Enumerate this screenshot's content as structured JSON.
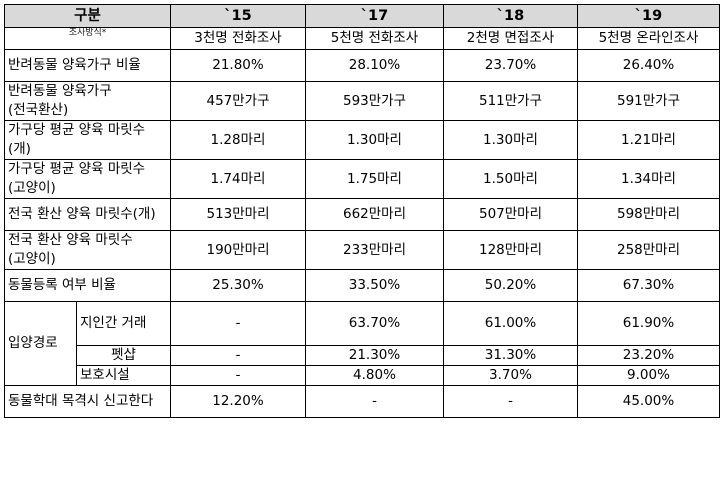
{
  "header": {
    "category": "구분",
    "years": [
      "`15",
      "`17",
      "`18",
      "`19"
    ]
  },
  "method": {
    "label": "조사방식*",
    "values": [
      "3천명 전화조사",
      "5천명 전화조사",
      "2천명 면접조사",
      "5천명 온라인조사"
    ]
  },
  "rows": [
    {
      "label": "반려동물 양육가구 비율",
      "values": [
        "21.80%",
        "28.10%",
        "23.70%",
        "26.40%"
      ]
    },
    {
      "label": "반려동물 양육가구(전국환산)",
      "values": [
        "457만가구",
        "593만가구",
        "511만가구",
        "591만가구"
      ]
    },
    {
      "label": "가구당 평균 양육 마릿수(개)",
      "values": [
        "1.28마리",
        "1.30마리",
        "1.30마리",
        "1.21마리"
      ]
    },
    {
      "label": "가구당 평균 양육 마릿수(고양이)",
      "values": [
        "1.74마리",
        "1.75마리",
        "1.50마리",
        "1.34마리"
      ]
    },
    {
      "label": "전국 환산 양육 마릿수(개)",
      "values": [
        "513만마리",
        "662만마리",
        "507만마리",
        "598만마리"
      ]
    },
    {
      "label": "전국 환산 양육 마릿수(고양이)",
      "values": [
        "190만마리",
        "233만마리",
        "128만마리",
        "258만마리"
      ]
    },
    {
      "label": "동물등록 여부 비율",
      "values": [
        "25.30%",
        "33.50%",
        "50.20%",
        "67.30%"
      ]
    }
  ],
  "adoption": {
    "label": "입양경로",
    "items": [
      {
        "label": "지인간 거래",
        "values": [
          "-",
          "63.70%",
          "61.00%",
          "61.90%"
        ]
      },
      {
        "label": "펫샵",
        "values": [
          "-",
          "21.30%",
          "31.30%",
          "23.20%"
        ]
      },
      {
        "label": "보호시설",
        "values": [
          "-",
          "4.80%",
          "3.70%",
          "9.00%"
        ]
      }
    ]
  },
  "last_row": {
    "label": "동물학대 목격시 신고한다",
    "values": [
      "12.20%",
      "-",
      "-",
      "45.00%"
    ]
  }
}
